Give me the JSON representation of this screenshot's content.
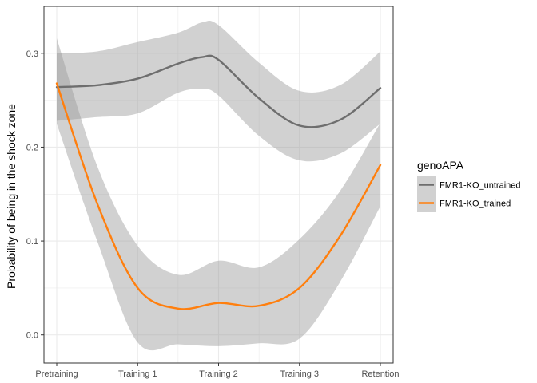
{
  "chart_data": {
    "type": "line",
    "xlabel": "",
    "ylabel": "Probability of being in the shock zone",
    "categories": [
      "Pretraining",
      "Training 1",
      "Training 2",
      "Training 3",
      "Retention"
    ],
    "ylim": [
      -0.03,
      0.35
    ],
    "yticks": [
      0.0,
      0.1,
      0.2,
      0.3
    ],
    "ytick_labels": [
      "0.0",
      "0.1",
      "0.2",
      "0.3"
    ],
    "grid": true,
    "legend": {
      "title": "genoAPA",
      "position": "right"
    },
    "colors": {
      "band": "#999999",
      "panel_border": "#333333",
      "grid": "#ebebeb"
    },
    "series": [
      {
        "name": "FMR1-KO_untrained",
        "color": "#6e6e6e",
        "points": [
          {
            "x": 0.0,
            "y": 0.264,
            "lo": 0.228,
            "hi": 0.3
          },
          {
            "x": 0.5,
            "y": 0.266,
            "lo": 0.232,
            "hi": 0.302
          },
          {
            "x": 1.0,
            "y": 0.273,
            "lo": 0.236,
            "hi": 0.312
          },
          {
            "x": 1.5,
            "y": 0.289,
            "lo": 0.258,
            "hi": 0.322
          },
          {
            "x": 1.8,
            "y": 0.296,
            "lo": 0.262,
            "hi": 0.333
          },
          {
            "x": 2.0,
            "y": 0.293,
            "lo": 0.255,
            "hi": 0.33
          },
          {
            "x": 2.5,
            "y": 0.252,
            "lo": 0.212,
            "hi": 0.29
          },
          {
            "x": 3.0,
            "y": 0.223,
            "lo": 0.186,
            "hi": 0.26
          },
          {
            "x": 3.5,
            "y": 0.229,
            "lo": 0.193,
            "hi": 0.266
          },
          {
            "x": 4.0,
            "y": 0.263,
            "lo": 0.225,
            "hi": 0.302
          }
        ]
      },
      {
        "name": "FMR1-KO_trained",
        "color": "#ff7f0e",
        "points": [
          {
            "x": 0.0,
            "y": 0.268,
            "lo": 0.225,
            "hi": 0.316
          },
          {
            "x": 0.5,
            "y": 0.14,
            "lo": 0.1,
            "hi": 0.18
          },
          {
            "x": 1.0,
            "y": 0.05,
            "lo": -0.008,
            "hi": 0.095
          },
          {
            "x": 1.5,
            "y": 0.028,
            "lo": -0.01,
            "hi": 0.064
          },
          {
            "x": 2.0,
            "y": 0.034,
            "lo": -0.012,
            "hi": 0.079
          },
          {
            "x": 2.5,
            "y": 0.031,
            "lo": -0.009,
            "hi": 0.072
          },
          {
            "x": 3.0,
            "y": 0.05,
            "lo": -0.004,
            "hi": 0.102
          },
          {
            "x": 3.5,
            "y": 0.105,
            "lo": 0.056,
            "hi": 0.153
          },
          {
            "x": 4.0,
            "y": 0.181,
            "lo": 0.137,
            "hi": 0.226
          }
        ]
      }
    ]
  }
}
